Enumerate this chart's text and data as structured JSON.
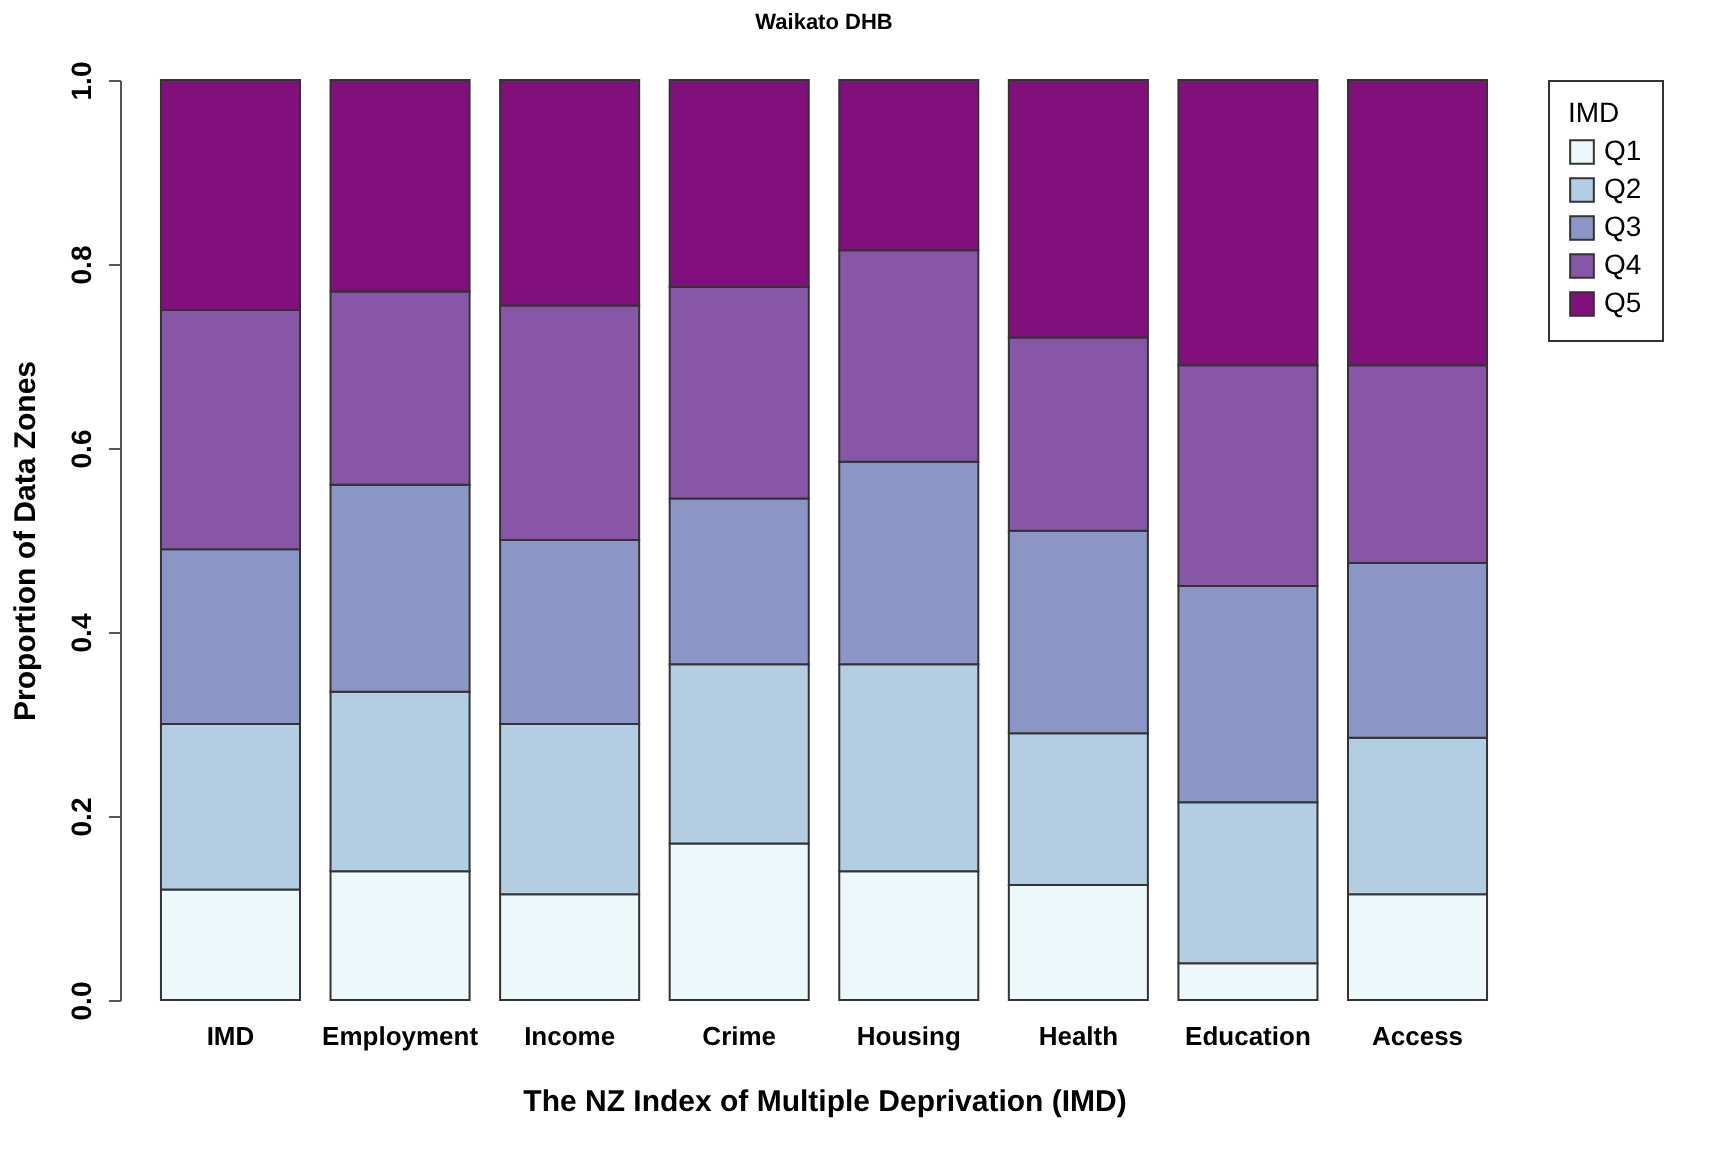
{
  "chart_data": {
    "type": "bar",
    "title": "Waikato DHB",
    "xlabel": "The NZ Index of Multiple Deprivation (IMD)",
    "ylabel": "Proportion of Data Zones",
    "legend_title": "IMD",
    "categories": [
      "IMD",
      "Employment",
      "Income",
      "Crime",
      "Housing",
      "Health",
      "Education",
      "Access"
    ],
    "stacked": true,
    "legend": "right",
    "grid": false,
    "ylim": [
      0,
      1
    ],
    "yticks": [
      {
        "value": 0,
        "label": "0.0"
      },
      {
        "value": 0.2,
        "label": "0.2"
      },
      {
        "value": 0.4,
        "label": "0.4"
      },
      {
        "value": 0.6,
        "label": "0.6"
      },
      {
        "value": 0.8,
        "label": "0.8"
      },
      {
        "value": 1,
        "label": "1.0"
      }
    ],
    "series": [
      {
        "name": "Q1",
        "color": "#edf8fb",
        "values": [
          0.12,
          0.14,
          0.115,
          0.17,
          0.14,
          0.125,
          0.04,
          0.115
        ]
      },
      {
        "name": "Q2",
        "color": "#b3cde3",
        "values": [
          0.18,
          0.195,
          0.185,
          0.195,
          0.225,
          0.165,
          0.175,
          0.17
        ]
      },
      {
        "name": "Q3",
        "color": "#8c96c6",
        "values": [
          0.19,
          0.225,
          0.2,
          0.18,
          0.22,
          0.22,
          0.235,
          0.19
        ]
      },
      {
        "name": "Q4",
        "color": "#8856a7",
        "values": [
          0.26,
          0.21,
          0.255,
          0.23,
          0.23,
          0.21,
          0.24,
          0.215
        ]
      },
      {
        "name": "Q5",
        "color": "#810f7c",
        "values": [
          0.25,
          0.23,
          0.245,
          0.225,
          0.185,
          0.28,
          0.31,
          0.31
        ]
      }
    ]
  }
}
